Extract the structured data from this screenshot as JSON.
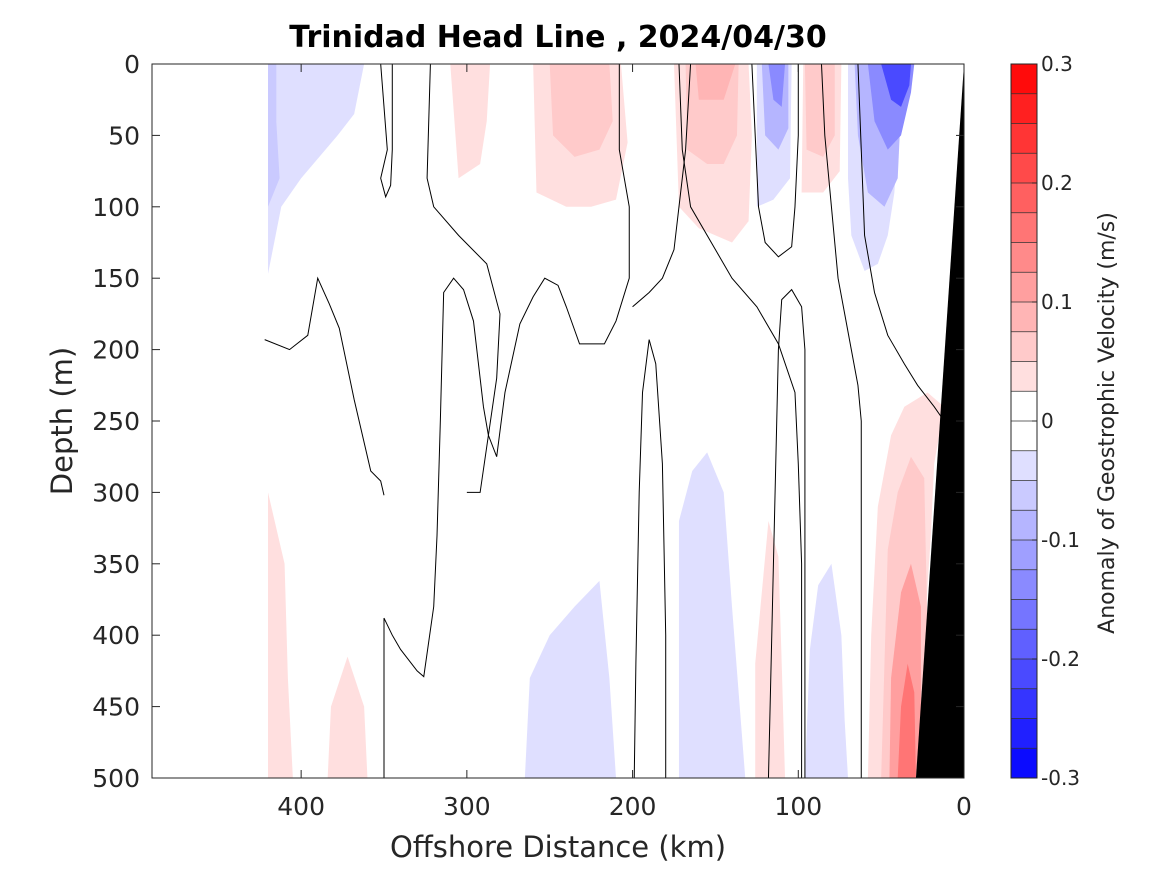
{
  "chart_data": {
    "type": "contour",
    "title": "Trinidad Head Line , 2024/04/30",
    "xlabel": "Offshore Distance (km)",
    "ylabel": "Depth (m)",
    "xlim": [
      490,
      0
    ],
    "ylim": [
      0,
      500
    ],
    "x_reversed": true,
    "y_reversed": true,
    "xticks": [
      400,
      300,
      200,
      100,
      0
    ],
    "yticks": [
      0,
      50,
      100,
      150,
      200,
      250,
      300,
      350,
      400,
      450,
      500
    ],
    "colorbar": {
      "label": "Anomaly of Geostrophic Velocity (m/s)",
      "range": [
        -0.3,
        0.3
      ],
      "ticks": [
        0.3,
        0.2,
        0.1,
        0,
        -0.1,
        -0.2,
        -0.3
      ],
      "tick_labels": [
        "0.3",
        "0.2",
        "0.1",
        "0",
        "-0.1",
        "-0.2",
        "-0.3"
      ],
      "levels": 24
    },
    "colors": {
      "positive": "#ff0000",
      "negative": "#0000ff",
      "zero": "#ffffff",
      "bathymetry": "#000000",
      "zero_contour": "#000000"
    },
    "bathymetry": [
      [
        0,
        0
      ],
      [
        0,
        500
      ],
      [
        29,
        500
      ]
    ],
    "zero_contours": [
      [
        [
          422,
          193
        ],
        [
          407,
          200
        ],
        [
          396,
          190
        ],
        [
          390,
          150
        ],
        [
          383,
          168
        ],
        [
          377,
          185
        ],
        [
          368,
          235
        ],
        [
          358,
          285
        ],
        [
          352,
          292
        ],
        [
          350,
          302
        ]
      ],
      [
        [
          350,
          500
        ],
        [
          350,
          388
        ],
        [
          345,
          400
        ],
        [
          340,
          410
        ],
        [
          330,
          425
        ],
        [
          326,
          429
        ],
        [
          320,
          380
        ],
        [
          318,
          330
        ],
        [
          316,
          250
        ],
        [
          314,
          160
        ],
        [
          308,
          150
        ],
        [
          302,
          158
        ],
        [
          296,
          180
        ],
        [
          290,
          240
        ],
        [
          287,
          260
        ],
        [
          282,
          275
        ],
        [
          277,
          230
        ],
        [
          268,
          182
        ],
        [
          260,
          163
        ],
        [
          253,
          150
        ],
        [
          245,
          155
        ],
        [
          240,
          170
        ],
        [
          232,
          196
        ],
        [
          217,
          196
        ],
        [
          210,
          180
        ],
        [
          202,
          150
        ],
        [
          202,
          100
        ],
        [
          208,
          60
        ],
        [
          208,
          0
        ]
      ],
      [
        [
          352,
          0
        ],
        [
          350,
          30
        ],
        [
          348,
          60
        ],
        [
          352,
          80
        ],
        [
          349,
          93
        ],
        [
          346,
          85
        ],
        [
          345,
          60
        ],
        [
          345,
          10
        ],
        [
          345,
          0
        ]
      ],
      [
        [
          322,
          0
        ],
        [
          323,
          40
        ],
        [
          324,
          80
        ],
        [
          320,
          100
        ],
        [
          305,
          120
        ],
        [
          288,
          140
        ],
        [
          280,
          175
        ],
        [
          282,
          220
        ],
        [
          292,
          300
        ],
        [
          300,
          300
        ]
      ],
      [
        [
          199,
          500
        ],
        [
          198,
          420
        ],
        [
          196,
          300
        ],
        [
          194,
          230
        ],
        [
          190,
          193
        ],
        [
          186,
          210
        ],
        [
          182,
          280
        ],
        [
          180,
          400
        ],
        [
          180,
          500
        ]
      ],
      [
        [
          172,
          0
        ],
        [
          170,
          60
        ],
        [
          165,
          100
        ],
        [
          150,
          130
        ],
        [
          140,
          150
        ],
        [
          125,
          170
        ],
        [
          112,
          196
        ],
        [
          102,
          230
        ],
        [
          100,
          280
        ],
        [
          98,
          350
        ],
        [
          98,
          500
        ]
      ],
      [
        [
          165,
          0
        ],
        [
          168,
          60
        ],
        [
          172,
          100
        ],
        [
          175,
          130
        ],
        [
          182,
          150
        ],
        [
          190,
          160
        ],
        [
          200,
          170
        ]
      ],
      [
        [
          128,
          0
        ],
        [
          126,
          50
        ],
        [
          124,
          100
        ],
        [
          120,
          125
        ],
        [
          112,
          135
        ],
        [
          104,
          128
        ],
        [
          102,
          100
        ],
        [
          100,
          50
        ],
        [
          100,
          0
        ]
      ],
      [
        [
          118,
          500
        ],
        [
          116,
          400
        ],
        [
          114,
          300
        ],
        [
          112,
          200
        ],
        [
          110,
          165
        ],
        [
          104,
          158
        ],
        [
          98,
          170
        ],
        [
          96,
          200
        ],
        [
          96,
          260
        ],
        [
          96,
          400
        ],
        [
          96,
          500
        ]
      ],
      [
        [
          86,
          0
        ],
        [
          84,
          50
        ],
        [
          80,
          100
        ],
        [
          76,
          150
        ],
        [
          72,
          175
        ],
        [
          68,
          200
        ],
        [
          64,
          225
        ],
        [
          62,
          250
        ],
        [
          62,
          300
        ],
        [
          62,
          400
        ],
        [
          62,
          500
        ]
      ],
      [
        [
          64,
          0
        ],
        [
          62,
          60
        ],
        [
          60,
          120
        ],
        [
          54,
          160
        ],
        [
          46,
          190
        ],
        [
          36,
          210
        ],
        [
          28,
          225
        ],
        [
          18,
          240
        ],
        [
          12,
          250
        ]
      ]
    ],
    "anomaly_patches": [
      {
        "sign": "neg",
        "value": -0.03,
        "polygon": [
          [
            420,
            0
          ],
          [
            420,
            147
          ],
          [
            412,
            100
          ],
          [
            400,
            80
          ],
          [
            378,
            50
          ],
          [
            368,
            35
          ],
          [
            362,
            0
          ]
        ]
      },
      {
        "sign": "neg",
        "value": -0.06,
        "polygon": [
          [
            420,
            0
          ],
          [
            420,
            100
          ],
          [
            413,
            80
          ],
          [
            415,
            40
          ],
          [
            415,
            0
          ]
        ]
      },
      {
        "sign": "pos",
        "value": 0.03,
        "polygon": [
          [
            310,
            0
          ],
          [
            305,
            80
          ],
          [
            292,
            70
          ],
          [
            288,
            40
          ],
          [
            286,
            0
          ]
        ]
      },
      {
        "sign": "pos",
        "value": 0.03,
        "polygon": [
          [
            260,
            0
          ],
          [
            258,
            90
          ],
          [
            240,
            100
          ],
          [
            225,
            100
          ],
          [
            210,
            95
          ],
          [
            203,
            55
          ],
          [
            207,
            0
          ]
        ]
      },
      {
        "sign": "pos",
        "value": 0.06,
        "polygon": [
          [
            250,
            0
          ],
          [
            248,
            50
          ],
          [
            235,
            65
          ],
          [
            220,
            60
          ],
          [
            212,
            40
          ],
          [
            214,
            0
          ]
        ]
      },
      {
        "sign": "pos",
        "value": 0.03,
        "polygon": [
          [
            175,
            0
          ],
          [
            172,
            100
          ],
          [
            160,
            115
          ],
          [
            140,
            125
          ],
          [
            130,
            110
          ],
          [
            128,
            50
          ],
          [
            130,
            0
          ]
        ]
      },
      {
        "sign": "pos",
        "value": 0.06,
        "polygon": [
          [
            168,
            0
          ],
          [
            167,
            60
          ],
          [
            155,
            70
          ],
          [
            145,
            70
          ],
          [
            137,
            50
          ],
          [
            136,
            0
          ]
        ]
      },
      {
        "sign": "pos",
        "value": 0.09,
        "polygon": [
          [
            162,
            0
          ],
          [
            160,
            25
          ],
          [
            145,
            25
          ],
          [
            138,
            0
          ]
        ]
      },
      {
        "sign": "neg",
        "value": -0.03,
        "polygon": [
          [
            125,
            0
          ],
          [
            125,
            100
          ],
          [
            115,
            95
          ],
          [
            105,
            80
          ],
          [
            104,
            0
          ]
        ]
      },
      {
        "sign": "neg",
        "value": -0.08,
        "polygon": [
          [
            122,
            0
          ],
          [
            120,
            50
          ],
          [
            112,
            60
          ],
          [
            106,
            45
          ],
          [
            106,
            0
          ]
        ]
      },
      {
        "sign": "neg",
        "value": -0.14,
        "polygon": [
          [
            118,
            0
          ],
          [
            115,
            25
          ],
          [
            110,
            30
          ],
          [
            108,
            0
          ]
        ]
      },
      {
        "sign": "pos",
        "value": 0.03,
        "polygon": [
          [
            97,
            0
          ],
          [
            98,
            90
          ],
          [
            85,
            90
          ],
          [
            75,
            75
          ],
          [
            74,
            0
          ]
        ]
      },
      {
        "sign": "pos",
        "value": 0.06,
        "polygon": [
          [
            96,
            0
          ],
          [
            95,
            60
          ],
          [
            85,
            65
          ],
          [
            78,
            50
          ],
          [
            78,
            0
          ]
        ]
      },
      {
        "sign": "neg",
        "value": -0.03,
        "polygon": [
          [
            70,
            0
          ],
          [
            70,
            80
          ],
          [
            68,
            120
          ],
          [
            60,
            145
          ],
          [
            52,
            140
          ],
          [
            46,
            120
          ],
          [
            42,
            90
          ],
          [
            40,
            50
          ],
          [
            40,
            0
          ]
        ]
      },
      {
        "sign": "neg",
        "value": -0.08,
        "polygon": [
          [
            66,
            0
          ],
          [
            64,
            50
          ],
          [
            58,
            90
          ],
          [
            48,
            100
          ],
          [
            40,
            80
          ],
          [
            38,
            30
          ],
          [
            38,
            0
          ]
        ]
      },
      {
        "sign": "neg",
        "value": -0.15,
        "polygon": [
          [
            58,
            0
          ],
          [
            54,
            40
          ],
          [
            46,
            60
          ],
          [
            38,
            50
          ],
          [
            32,
            20
          ],
          [
            30,
            0
          ]
        ]
      },
      {
        "sign": "neg",
        "value": -0.22,
        "polygon": [
          [
            50,
            0
          ],
          [
            44,
            25
          ],
          [
            38,
            30
          ],
          [
            33,
            15
          ],
          [
            32,
            0
          ]
        ]
      },
      {
        "sign": "neg",
        "value": -0.03,
        "polygon": [
          [
            265,
            500
          ],
          [
            262,
            430
          ],
          [
            250,
            400
          ],
          [
            235,
            380
          ],
          [
            220,
            362
          ],
          [
            214,
            430
          ],
          [
            210,
            500
          ]
        ]
      },
      {
        "sign": "neg",
        "value": -0.03,
        "polygon": [
          [
            172,
            500
          ],
          [
            172,
            320
          ],
          [
            164,
            285
          ],
          [
            155,
            272
          ],
          [
            145,
            300
          ],
          [
            140,
            380
          ],
          [
            132,
            500
          ]
        ]
      },
      {
        "sign": "neg",
        "value": -0.03,
        "polygon": [
          [
            96,
            500
          ],
          [
            93,
            410
          ],
          [
            88,
            365
          ],
          [
            80,
            350
          ],
          [
            74,
            400
          ],
          [
            72,
            460
          ],
          [
            70,
            500
          ]
        ]
      },
      {
        "sign": "pos",
        "value": 0.03,
        "polygon": [
          [
            420,
            500
          ],
          [
            420,
            300
          ],
          [
            410,
            350
          ],
          [
            408,
            430
          ],
          [
            405,
            500
          ]
        ]
      },
      {
        "sign": "pos",
        "value": 0.03,
        "polygon": [
          [
            384,
            500
          ],
          [
            382,
            450
          ],
          [
            372,
            415
          ],
          [
            362,
            450
          ],
          [
            360,
            500
          ]
        ]
      },
      {
        "sign": "pos",
        "value": 0.03,
        "polygon": [
          [
            126,
            500
          ],
          [
            126,
            420
          ],
          [
            118,
            320
          ],
          [
            112,
            345
          ],
          [
            110,
            420
          ],
          [
            108,
            500
          ]
        ]
      },
      {
        "sign": "pos",
        "value": 0.03,
        "polygon": [
          [
            58,
            500
          ],
          [
            56,
            400
          ],
          [
            52,
            310
          ],
          [
            44,
            260
          ],
          [
            36,
            240
          ],
          [
            22,
            230
          ],
          [
            12,
            240
          ],
          [
            18,
            280
          ],
          [
            20,
            330
          ],
          [
            24,
            400
          ],
          [
            29,
            500
          ]
        ]
      },
      {
        "sign": "pos",
        "value": 0.07,
        "polygon": [
          [
            50,
            500
          ],
          [
            48,
            420
          ],
          [
            46,
            340
          ],
          [
            40,
            300
          ],
          [
            32,
            275
          ],
          [
            24,
            290
          ],
          [
            22,
            400
          ],
          [
            29,
            500
          ]
        ]
      },
      {
        "sign": "pos",
        "value": 0.11,
        "polygon": [
          [
            45,
            500
          ],
          [
            44,
            430
          ],
          [
            38,
            370
          ],
          [
            32,
            350
          ],
          [
            26,
            380
          ],
          [
            26,
            460
          ],
          [
            29,
            500
          ]
        ]
      },
      {
        "sign": "pos",
        "value": 0.15,
        "polygon": [
          [
            40,
            500
          ],
          [
            38,
            450
          ],
          [
            34,
            420
          ],
          [
            30,
            440
          ],
          [
            29,
            500
          ]
        ]
      }
    ]
  }
}
